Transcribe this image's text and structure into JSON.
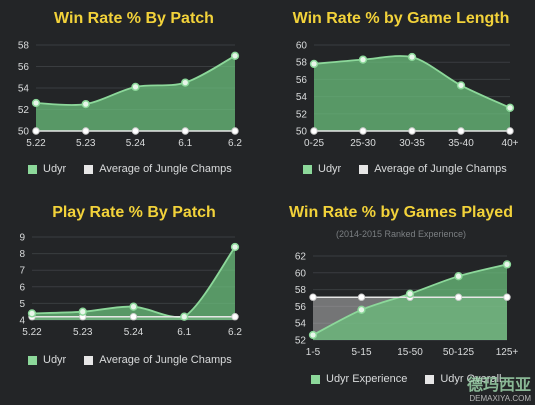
{
  "colors": {
    "background": "#232527",
    "title": "#f2d23a",
    "udyr_line": "#8cd89a",
    "udyr_fill": "#6bbf7c",
    "average": "#e6e6e6",
    "grid": "#3a3d40",
    "axis_text": "#d9dbdc",
    "legend_text": "#d9dbdc"
  },
  "chart_data": [
    {
      "type": "area",
      "title": "Win Rate % By Patch",
      "categories": [
        "5.22",
        "5.23",
        "5.24",
        "6.1",
        "6.2"
      ],
      "ylim": [
        50,
        58
      ],
      "yticks": [
        "50",
        "52",
        "54",
        "56",
        "58"
      ],
      "series": [
        {
          "name": "Udyr",
          "values": [
            52.6,
            52.5,
            54.1,
            54.5,
            57.0
          ]
        },
        {
          "name": "Average of Jungle Champs",
          "values": [
            50.0,
            50.0,
            50.0,
            50.0,
            50.0
          ]
        }
      ],
      "grid": true,
      "legend": "bottom"
    },
    {
      "type": "area",
      "title": "Win Rate % by Game Length",
      "categories": [
        "0-25",
        "25-30",
        "30-35",
        "35-40",
        "40+"
      ],
      "ylim": [
        50,
        60
      ],
      "yticks": [
        "50",
        "52",
        "54",
        "56",
        "58",
        "60"
      ],
      "series": [
        {
          "name": "Udyr",
          "values": [
            57.8,
            58.3,
            58.6,
            55.3,
            52.7
          ]
        },
        {
          "name": "Average of Jungle Champs",
          "values": [
            50.0,
            50.0,
            50.0,
            50.0,
            50.0
          ]
        }
      ],
      "grid": true,
      "legend": "bottom"
    },
    {
      "type": "area",
      "title": "Play Rate % By Patch",
      "categories": [
        "5.22",
        "5.23",
        "5.24",
        "6.1",
        "6.2"
      ],
      "ylim": [
        4,
        9
      ],
      "yticks": [
        "4",
        "5",
        "6",
        "7",
        "8",
        "9"
      ],
      "series": [
        {
          "name": "Udyr",
          "values": [
            4.4,
            4.5,
            4.8,
            4.2,
            8.4
          ]
        },
        {
          "name": "Average of Jungle Champs",
          "values": [
            4.2,
            4.2,
            4.2,
            4.2,
            4.2
          ]
        }
      ],
      "grid": true,
      "legend": "bottom"
    },
    {
      "type": "area",
      "title": "Win Rate % by Games Played",
      "subtitle": "(2014-2015 Ranked Experience)",
      "categories": [
        "1-5",
        "5-15",
        "15-50",
        "50-125",
        "125+"
      ],
      "ylim": [
        52,
        62
      ],
      "yticks": [
        "52",
        "54",
        "56",
        "58",
        "60",
        "62"
      ],
      "series": [
        {
          "name": "Udyr Experience",
          "values": [
            52.6,
            55.6,
            57.5,
            59.6,
            61.0
          ]
        },
        {
          "name": "Udyr Overall",
          "values": [
            57.1,
            57.1,
            57.1,
            57.1,
            57.1
          ]
        }
      ],
      "grid": true,
      "legend": "bottom"
    }
  ],
  "watermark": {
    "line1": "德玛西亚",
    "line2": "DEMAXIYA.COM"
  }
}
